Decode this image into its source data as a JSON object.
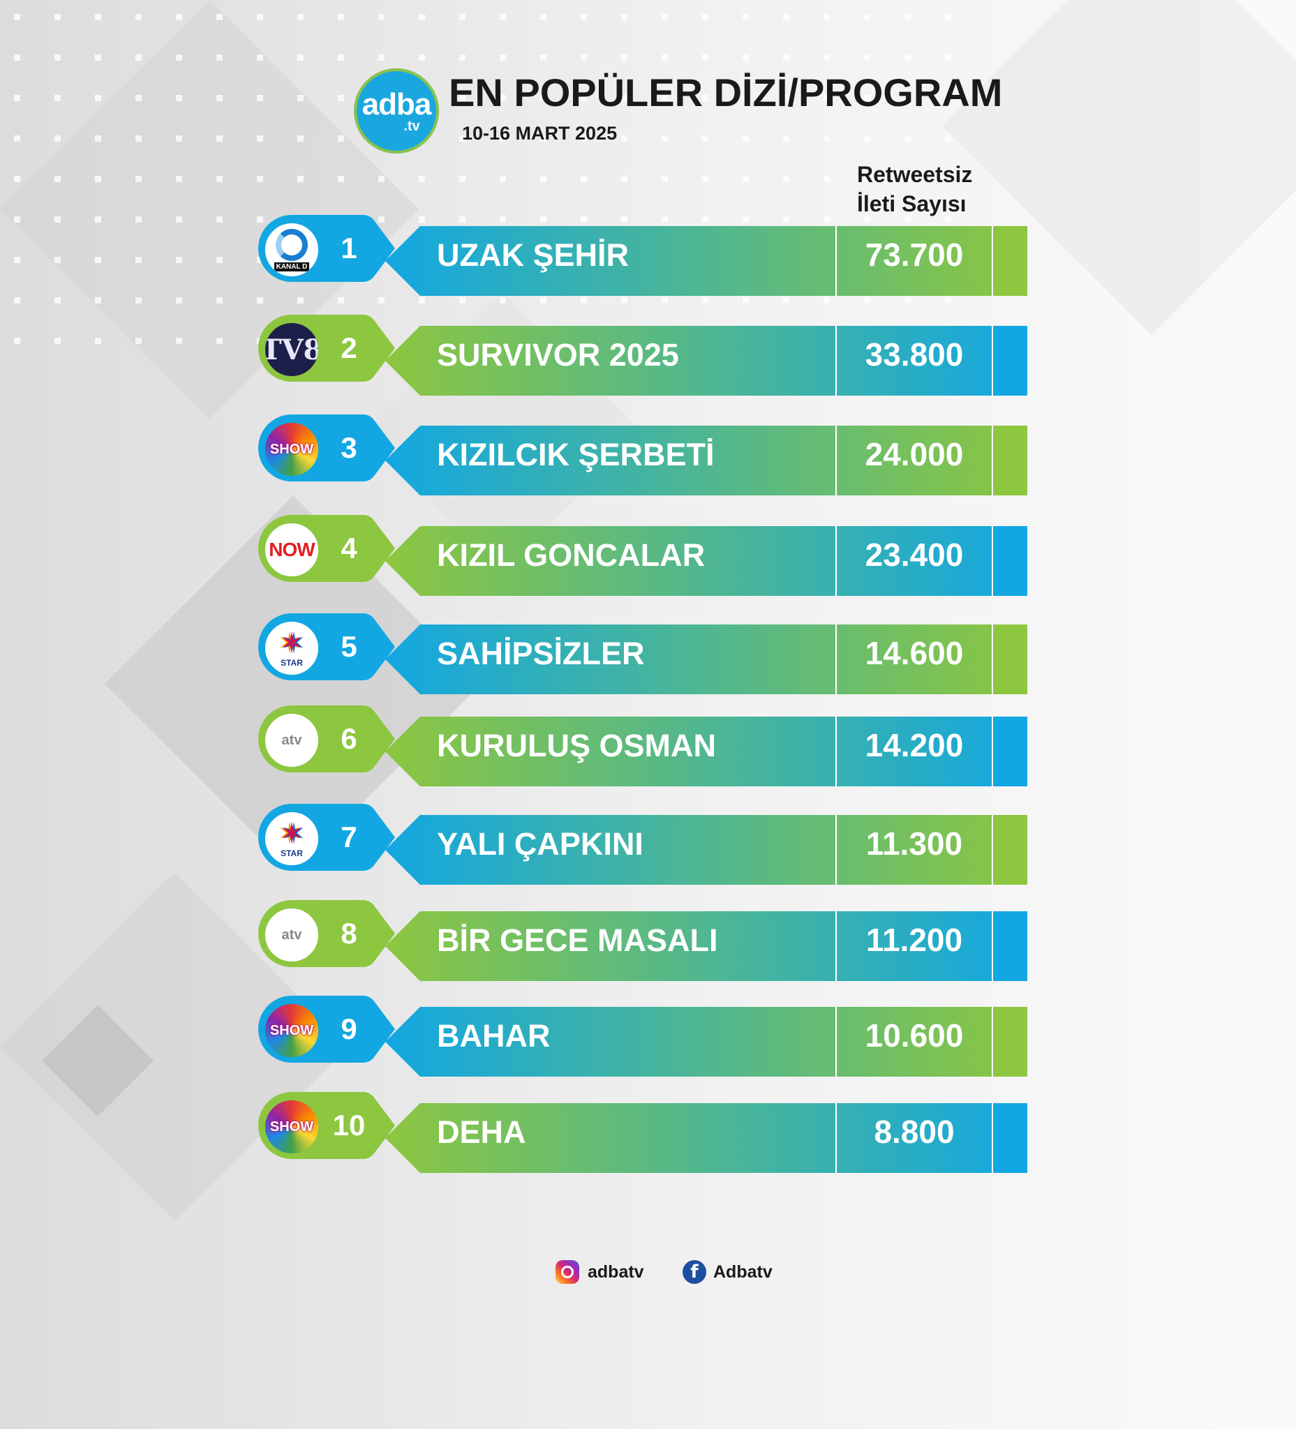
{
  "header": {
    "logo_main": "adba",
    "logo_sub": ".tv",
    "title": "EN POPÜLER DİZİ/PROGRAM",
    "date": "10-16 MART 2025",
    "column_header_line1": "Retweetsiz",
    "column_header_line2": "İleti Sayısı"
  },
  "colors": {
    "blue": "#12a7e2",
    "green": "#8dc63f"
  },
  "rows": [
    {
      "rank": "1",
      "name": "UZAK ŞEHİR",
      "value": "73.700",
      "channel_icon": "kanal-d-logo",
      "channel_text": "KANAL D",
      "theme": "blue"
    },
    {
      "rank": "2",
      "name": "SURVIVOR 2025",
      "value": "33.800",
      "channel_icon": "tv8-logo",
      "channel_text": "TV8",
      "theme": "green"
    },
    {
      "rank": "3",
      "name": "KIZILCIK ŞERBETİ",
      "value": "24.000",
      "channel_icon": "show-tv-logo",
      "channel_text": "SHOW",
      "theme": "blue"
    },
    {
      "rank": "4",
      "name": "KIZIL GONCALAR",
      "value": "23.400",
      "channel_icon": "now-tv-logo",
      "channel_text": "NOW",
      "theme": "green"
    },
    {
      "rank": "5",
      "name": "SAHİPSİZLER",
      "value": "14.600",
      "channel_icon": "star-tv-logo",
      "channel_text": "STAR",
      "theme": "blue"
    },
    {
      "rank": "6",
      "name": "KURULUŞ OSMAN",
      "value": "14.200",
      "channel_icon": "atv-logo",
      "channel_text": "atv",
      "theme": "green"
    },
    {
      "rank": "7",
      "name": "YALI ÇAPKINI",
      "value": "11.300",
      "channel_icon": "star-tv-logo",
      "channel_text": "STAR",
      "theme": "blue"
    },
    {
      "rank": "8",
      "name": "BİR GECE MASALI",
      "value": "11.200",
      "channel_icon": "atv-logo",
      "channel_text": "atv",
      "theme": "green"
    },
    {
      "rank": "9",
      "name": "BAHAR",
      "value": "10.600",
      "channel_icon": "show-tv-logo",
      "channel_text": "SHOW",
      "theme": "blue"
    },
    {
      "rank": "10",
      "name": "DEHA",
      "value": "8.800",
      "channel_icon": "show-tv-logo",
      "channel_text": "SHOW",
      "theme": "green"
    }
  ],
  "footer": {
    "instagram_handle": "adbatv",
    "facebook_handle": "Adbatv",
    "instagram_icon": "instagram-icon",
    "facebook_icon": "facebook-icon"
  }
}
